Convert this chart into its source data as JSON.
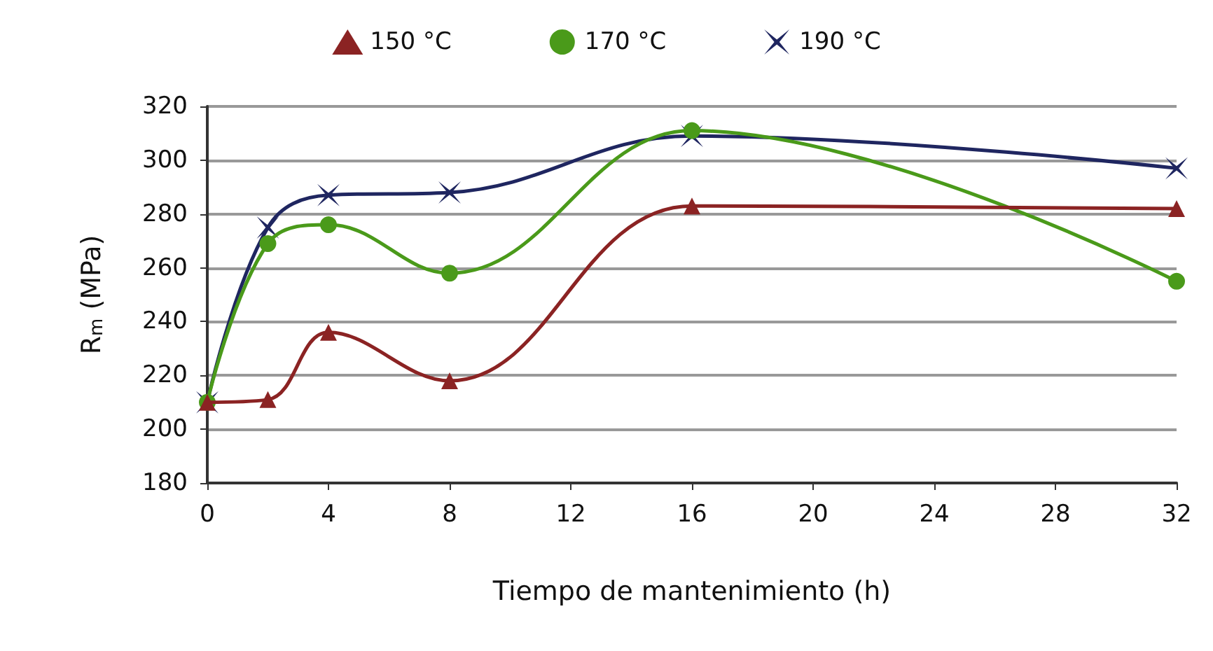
{
  "chart_data": {
    "type": "line",
    "xlabel": "Tiempo de mantenimiento (h)",
    "ylabel": "R$_{m}$ (MPa)",
    "x": [
      0,
      2,
      4,
      8,
      16,
      32
    ],
    "series": [
      {
        "name": "150 °C",
        "color": "#8b2323",
        "marker": "triangle",
        "values": [
          210,
          211,
          236,
          218,
          283,
          282
        ]
      },
      {
        "name": "170 °C",
        "color": "#4a9a1a",
        "marker": "circle",
        "values": [
          210,
          269,
          276,
          258,
          311,
          255
        ]
      },
      {
        "name": "190 °C",
        "color": "#1f2660",
        "marker": "cross",
        "values": [
          210,
          275,
          287,
          288,
          309,
          297
        ]
      }
    ],
    "xlim": [
      0,
      32
    ],
    "xticks": [
      0,
      4,
      8,
      12,
      16,
      20,
      24,
      28,
      32
    ],
    "ylim": [
      180,
      320
    ],
    "yticks": [
      180,
      200,
      220,
      240,
      260,
      280,
      300,
      320
    ],
    "grid": "y",
    "legend": "top"
  }
}
